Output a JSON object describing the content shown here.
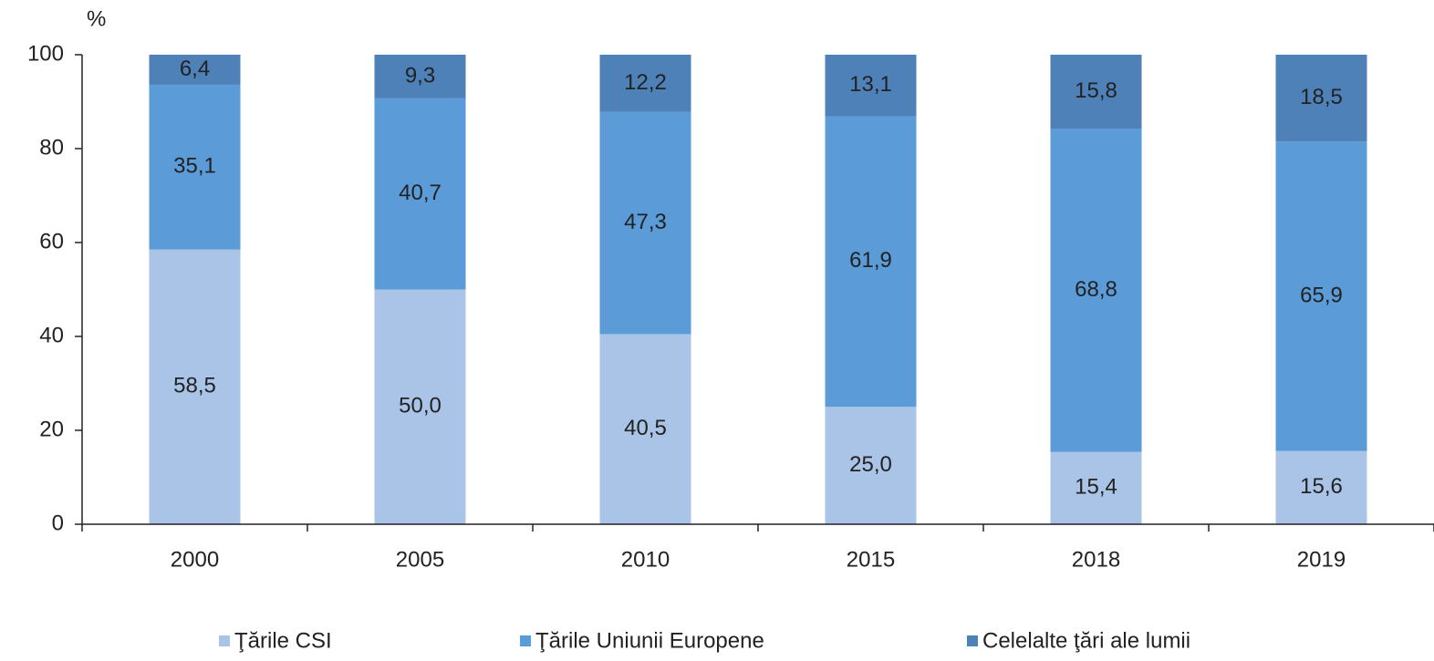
{
  "chart_data": {
    "type": "stacked_bar",
    "y_axis_label": "%",
    "categories": [
      "2000",
      "2005",
      "2010",
      "2015",
      "2018",
      "2019"
    ],
    "series": [
      {
        "name": "Ţările CSI",
        "color": "#a9c4e6",
        "values": [
          58.5,
          50.0,
          40.5,
          25.0,
          15.4,
          15.6
        ],
        "value_labels": [
          "58,5",
          "50,0",
          "40,5",
          "25,0",
          "15,4",
          "15,6"
        ]
      },
      {
        "name": "Ţările Uniunii Europene",
        "color": "#5b9bd8",
        "values": [
          35.1,
          40.7,
          47.3,
          61.9,
          68.8,
          65.9
        ],
        "value_labels": [
          "35,1",
          "40,7",
          "47,3",
          "61,9",
          "68,8",
          "65,9"
        ]
      },
      {
        "name": "Celelalte ţări ale lumii",
        "color": "#4f81b9",
        "values": [
          6.4,
          9.3,
          12.2,
          13.1,
          15.8,
          18.5
        ],
        "value_labels": [
          "6,4",
          "9,3",
          "12,2",
          "13,1",
          "15,8",
          "18,5"
        ]
      }
    ],
    "ylim": [
      0,
      100
    ],
    "yticks": [
      0,
      20,
      40,
      60,
      80,
      100
    ],
    "legend": "bottom"
  }
}
